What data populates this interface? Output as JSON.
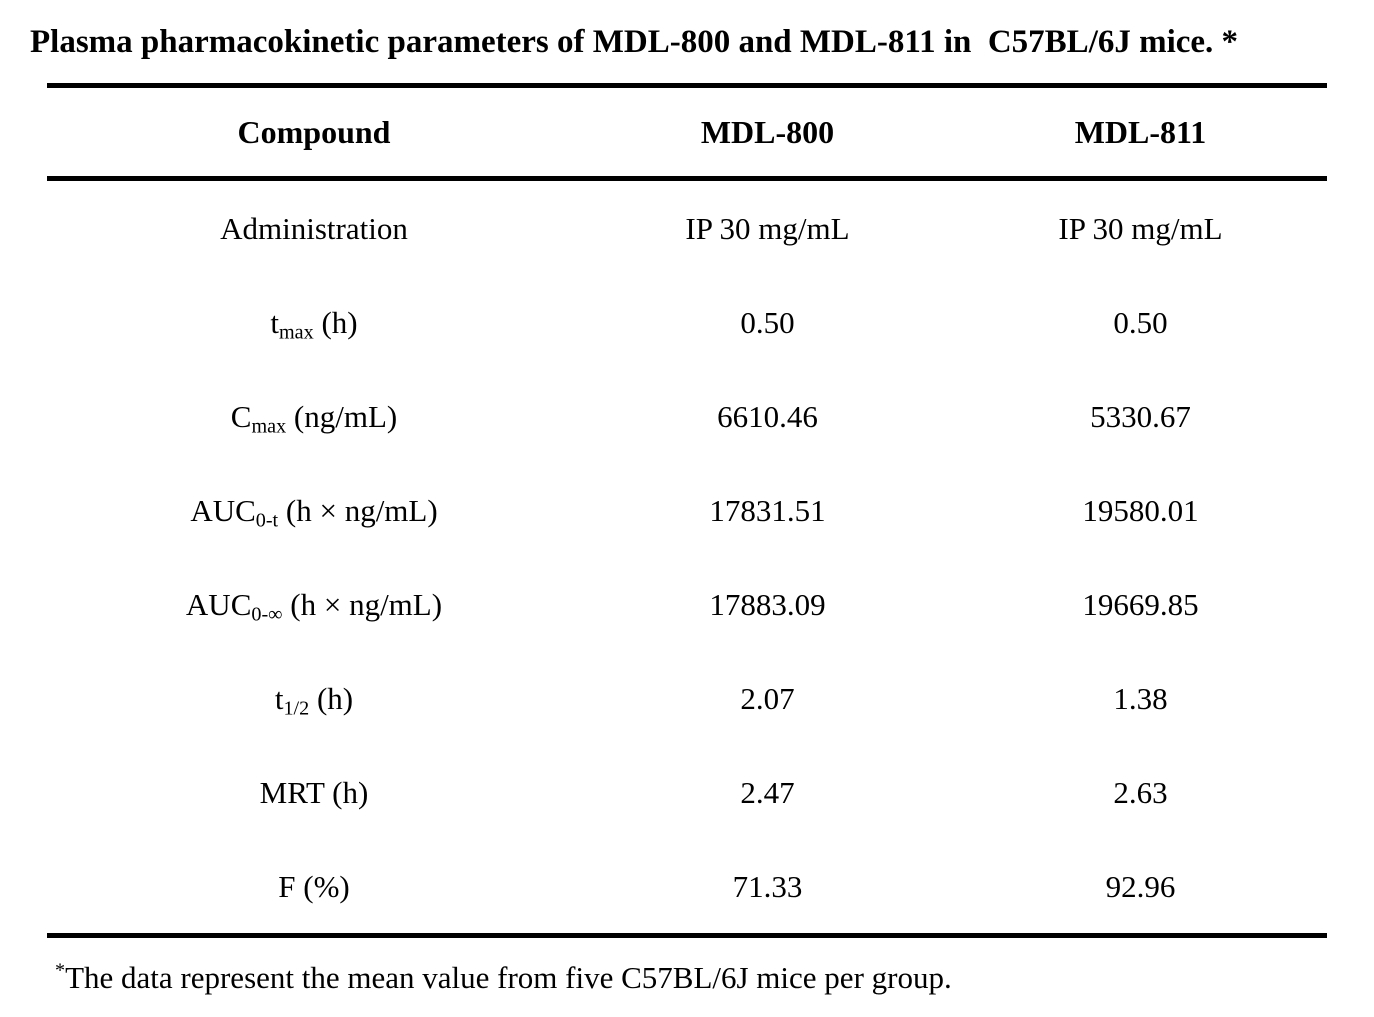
{
  "title": "Plasma pharmacokinetic parameters of MDL-800 and MDL-811 in  C57BL/6J mice. *",
  "colors": {
    "text": "#000000",
    "background": "#ffffff",
    "rule": "#000000"
  },
  "table": {
    "header": {
      "col1": "Compound",
      "col2": "MDL-800",
      "col3": "MDL-811"
    },
    "rows": [
      {
        "label": {
          "pre": "Administration",
          "sub": "",
          "post": ""
        },
        "mdl800": "IP 30 mg/mL",
        "mdl811": "IP 30 mg/mL"
      },
      {
        "label": {
          "pre": "t",
          "sub": "max",
          "post": " (h)"
        },
        "mdl800": "0.50",
        "mdl811": "0.50"
      },
      {
        "label": {
          "pre": "C",
          "sub": "max",
          "post": " (ng/mL)"
        },
        "mdl800": "6610.46",
        "mdl811": "5330.67"
      },
      {
        "label": {
          "pre": "AUC",
          "sub": "0-t",
          "post": " (h × ng/mL)"
        },
        "mdl800": "17831.51",
        "mdl811": "19580.01"
      },
      {
        "label": {
          "pre": "AUC",
          "sub": "0-∞",
          "post": " (h × ng/mL)"
        },
        "mdl800": "17883.09",
        "mdl811": "19669.85"
      },
      {
        "label": {
          "pre": "t",
          "sub": "1/2",
          "post": " (h)"
        },
        "mdl800": "2.07",
        "mdl811": "1.38"
      },
      {
        "label": {
          "pre": "MRT (h)",
          "sub": "",
          "post": ""
        },
        "mdl800": "2.47",
        "mdl811": "2.63"
      },
      {
        "label": {
          "pre": "F (%)",
          "sub": "",
          "post": ""
        },
        "mdl800": "71.33",
        "mdl811": "92.96"
      }
    ]
  },
  "footnote": {
    "marker": "*",
    "text": "The data represent the mean value from five C57BL/6J mice per group."
  }
}
